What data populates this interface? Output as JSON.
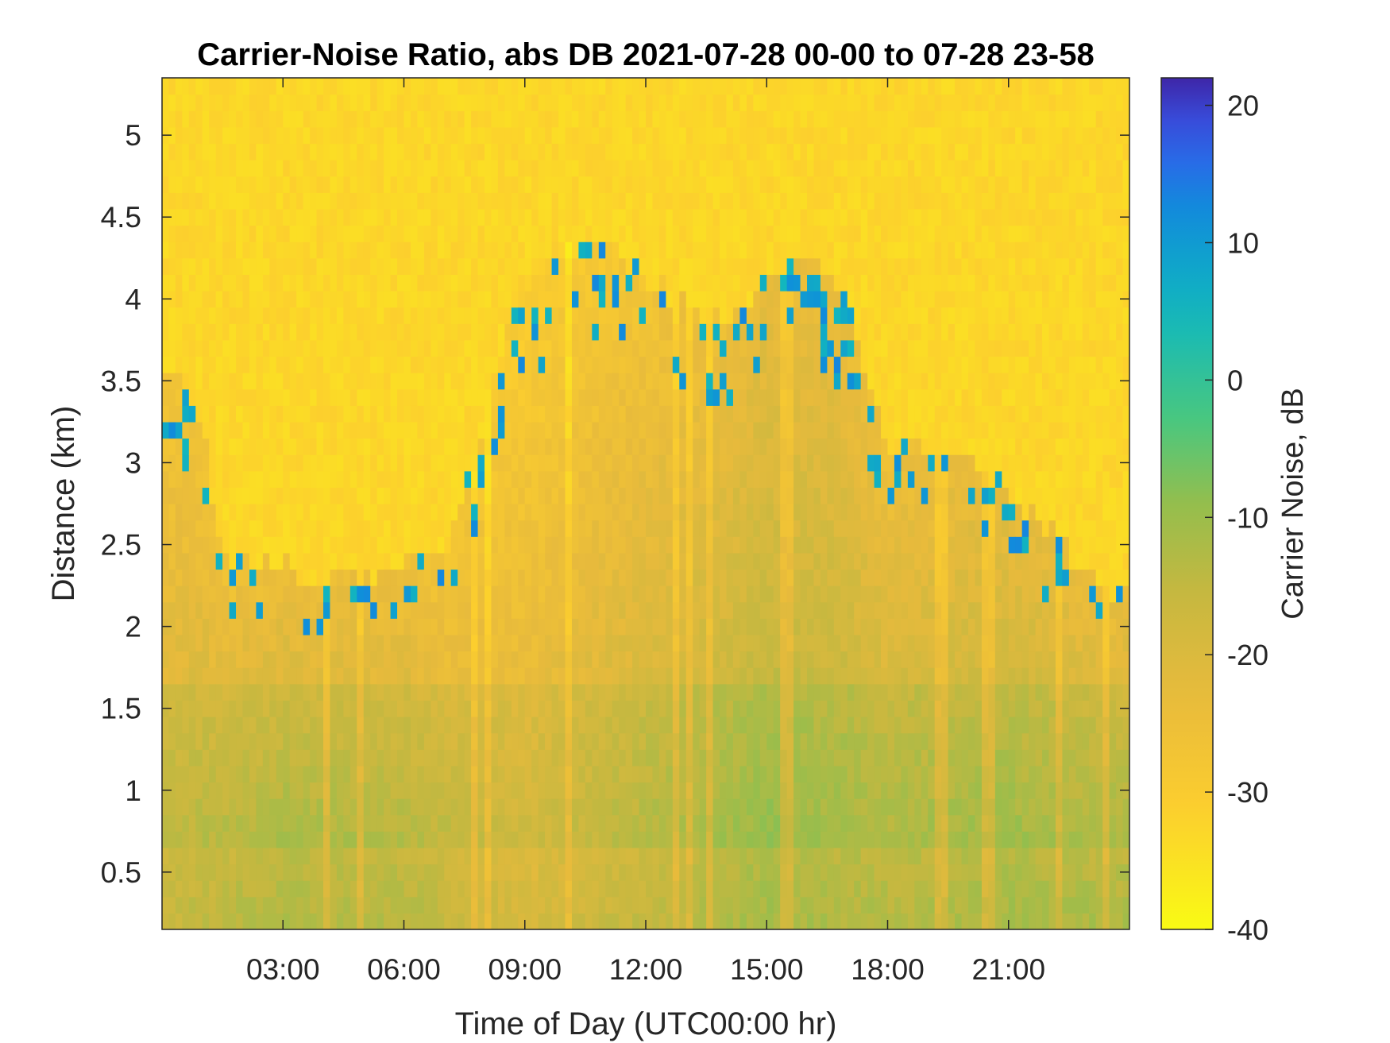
{
  "chart_data": {
    "type": "heatmap",
    "title": "Carrier-Noise Ratio, abs DB 2021-07-28 00-00 to 07-28 23-58",
    "xlabel": "Time of Day (UTC00:00 hr)",
    "ylabel": "Distance (km)",
    "colorbar_label": "Carrier Noise, dB",
    "colormap": "parula",
    "colormap_reversed": true,
    "x_unit": "hours UTC",
    "xlim": [
      0,
      24
    ],
    "x_ticks": [
      3,
      6,
      9,
      12,
      15,
      18,
      21
    ],
    "x_tick_labels": [
      "03:00",
      "06:00",
      "09:00",
      "12:00",
      "15:00",
      "18:00",
      "21:00"
    ],
    "ylim": [
      0.15,
      5.35
    ],
    "y_ticks": [
      0.5,
      1,
      1.5,
      2,
      2.5,
      3,
      3.5,
      4,
      4.5,
      5
    ],
    "y_tick_labels": [
      "0.5",
      "1",
      "1.5",
      "2",
      "2.5",
      "3",
      "3.5",
      "4",
      "4.5",
      "5"
    ],
    "clim": [
      -40,
      22
    ],
    "c_ticks": [
      -40,
      -30,
      -20,
      -10,
      0,
      10,
      20
    ],
    "c_tick_labels": [
      "-40",
      "-30",
      "-20",
      "-10",
      "0",
      "10",
      "20"
    ],
    "grid": false,
    "approx_signal_top_km": {
      "hours": [
        0,
        1,
        1.5,
        2.5,
        3.5,
        5,
        6,
        7,
        8,
        9,
        10,
        11,
        12,
        13,
        14,
        15,
        16,
        17,
        18,
        19,
        20,
        21,
        22,
        23,
        24
      ],
      "km": [
        3.7,
        3.2,
        2.4,
        2.4,
        2.3,
        2.3,
        2.4,
        2.4,
        3.3,
        4.2,
        4.3,
        4.3,
        4.1,
        4.0,
        3.9,
        4.1,
        4.3,
        4.0,
        3.1,
        3.1,
        3.0,
        2.8,
        2.6,
        2.3,
        2.2
      ]
    },
    "approx_surface_values_db": {
      "hours": [
        0,
        3,
        6,
        9,
        12,
        15,
        18,
        21,
        24
      ],
      "db": [
        -16,
        -12,
        -13,
        -19,
        -15,
        -11,
        -13,
        -11,
        -12
      ]
    },
    "top_of_range_value_db": -33
  }
}
